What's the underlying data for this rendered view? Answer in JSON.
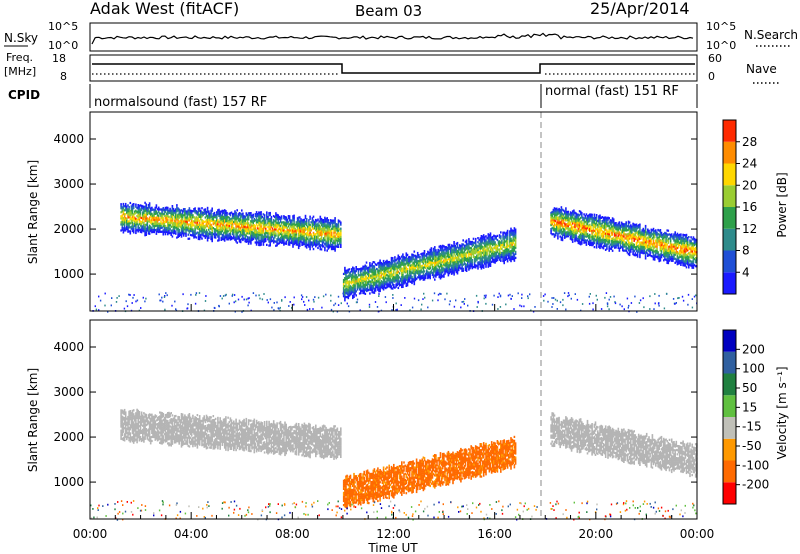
{
  "header": {
    "station": "Adak West (fitACF)",
    "beam": "Beam 03",
    "date": "25/Apr/2014"
  },
  "noise_panel": {
    "left_label": "N.Sky",
    "right_label": "N.Search",
    "left_ticks": [
      "10^5",
      "10^0"
    ],
    "right_ticks": [
      "10^5",
      "10^0"
    ]
  },
  "freq_panel": {
    "label_line1": "Freq.",
    "label_line2": "[MHz]",
    "left_ticks": [
      "18",
      "8"
    ],
    "right_label": "Nave",
    "right_ticks": [
      "60",
      "0"
    ]
  },
  "cpid_panel": {
    "label": "CPID",
    "mode_1": "normalsound (fast) 157 RF",
    "mode_2": "normal (fast) 151 RF"
  },
  "power_panel": {
    "ylabel": "Slant Range [km]",
    "yticks": [
      "4000",
      "3000",
      "2000",
      "1000"
    ],
    "colorbar_label": "Power [dB]",
    "colorbar_ticks": [
      "28",
      "24",
      "20",
      "16",
      "12",
      "8",
      "4"
    ]
  },
  "velocity_panel": {
    "ylabel": "Slant Range [km]",
    "yticks": [
      "4000",
      "3000",
      "2000",
      "1000"
    ],
    "colorbar_label": "Velocity [m s⁻¹]",
    "colorbar_ticks": [
      "200",
      "100",
      "50",
      "15",
      "-15",
      "-50",
      "-100",
      "-200"
    ]
  },
  "xaxis": {
    "label": "Time UT",
    "ticks": [
      "00:00",
      "04:00",
      "08:00",
      "12:00",
      "16:00",
      "20:00",
      "00:00"
    ]
  },
  "colors": {
    "power_scale": [
      "#1a1aff",
      "#1f4fd6",
      "#2e8b8b",
      "#2ea04a",
      "#9acd32",
      "#ffd700",
      "#ff8c00",
      "#ff2a00"
    ],
    "velocity_scale": [
      "#0000c0",
      "#3060a0",
      "#208040",
      "#60c040",
      "#c0c0b8",
      "#ff9900",
      "#ff6a00",
      "#ff0000"
    ],
    "ground_scatter": "#b4b4b4"
  },
  "chart_data": {
    "type": "heatmap",
    "x_range_hours": [
      0,
      24
    ],
    "y_range_km": [
      180,
      4600
    ],
    "cpid_switch_hours": [
      10.0,
      18.0
    ],
    "power_echo_bands": [
      {
        "t_start": 1.2,
        "t_end": 9.9,
        "range_start_km": 2300,
        "range_end_km": 1900,
        "peak_db": 24
      },
      {
        "t_start": 10.0,
        "t_end": 16.8,
        "range_start_km": 800,
        "range_end_km": 1700,
        "peak_db": 20
      },
      {
        "t_start": 18.2,
        "t_end": 24.0,
        "range_start_km": 2200,
        "range_end_km": 1500,
        "peak_db": 26
      }
    ],
    "velocity_echo_bands": [
      {
        "t_start": 1.2,
        "t_end": 9.9,
        "range_start_km": 2300,
        "range_end_km": 1900,
        "velocity_ms": 0
      },
      {
        "t_start": 10.0,
        "t_end": 16.8,
        "range_start_km": 800,
        "range_end_km": 1700,
        "velocity_ms": -70
      },
      {
        "t_start": 18.2,
        "t_end": 24.0,
        "range_start_km": 2200,
        "range_end_km": 1500,
        "velocity_ms": 0
      }
    ]
  }
}
